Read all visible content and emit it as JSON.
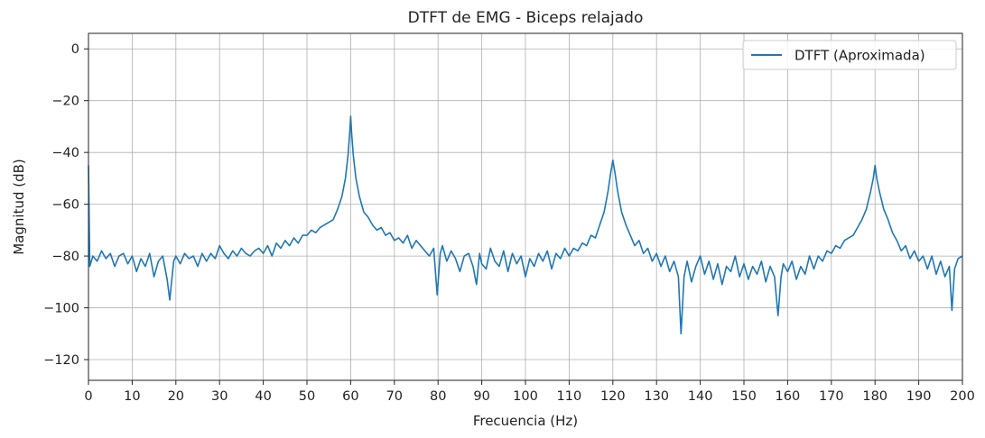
{
  "chart_data": {
    "type": "line",
    "title": "DTFT de EMG - Biceps relajado",
    "xlabel": "Frecuencia (Hz)",
    "ylabel": "Magnitud (dB)",
    "xlim": [
      0,
      200
    ],
    "ylim": [
      -128,
      6
    ],
    "xticks": [
      0,
      10,
      20,
      30,
      40,
      50,
      60,
      70,
      80,
      90,
      100,
      110,
      120,
      130,
      140,
      150,
      160,
      170,
      180,
      190,
      200
    ],
    "yticks": [
      0,
      -20,
      -40,
      -60,
      -80,
      -100,
      -120
    ],
    "grid": true,
    "legend_position": "top-right",
    "series": [
      {
        "name": "DTFT (Aproximada)",
        "color": "#1f77b4",
        "points": [
          [
            0,
            -45
          ],
          [
            0.3,
            -84
          ],
          [
            1,
            -80
          ],
          [
            2,
            -82
          ],
          [
            3,
            -78
          ],
          [
            4,
            -81
          ],
          [
            5,
            -79
          ],
          [
            6,
            -84
          ],
          [
            7,
            -80
          ],
          [
            8,
            -79
          ],
          [
            9,
            -83
          ],
          [
            10,
            -80
          ],
          [
            11,
            -86
          ],
          [
            12,
            -81
          ],
          [
            13,
            -84
          ],
          [
            14,
            -79
          ],
          [
            15,
            -88
          ],
          [
            16,
            -82
          ],
          [
            17,
            -80
          ],
          [
            18,
            -89
          ],
          [
            18.6,
            -97
          ],
          [
            19.5,
            -82
          ],
          [
            20,
            -80
          ],
          [
            21,
            -83
          ],
          [
            22,
            -79
          ],
          [
            23,
            -81
          ],
          [
            24,
            -80
          ],
          [
            25,
            -84
          ],
          [
            26,
            -79
          ],
          [
            27,
            -82
          ],
          [
            28,
            -79
          ],
          [
            29,
            -81
          ],
          [
            30,
            -76
          ],
          [
            31,
            -79
          ],
          [
            32,
            -81
          ],
          [
            33,
            -78
          ],
          [
            34,
            -80
          ],
          [
            35,
            -77
          ],
          [
            36,
            -79
          ],
          [
            37,
            -80
          ],
          [
            38,
            -78
          ],
          [
            39,
            -77
          ],
          [
            40,
            -79
          ],
          [
            41,
            -76
          ],
          [
            42,
            -80
          ],
          [
            43,
            -75
          ],
          [
            44,
            -77
          ],
          [
            45,
            -74
          ],
          [
            46,
            -76
          ],
          [
            47,
            -73
          ],
          [
            48,
            -75
          ],
          [
            49,
            -72
          ],
          [
            50,
            -72
          ],
          [
            51,
            -70
          ],
          [
            52,
            -71
          ],
          [
            53,
            -69
          ],
          [
            54,
            -68
          ],
          [
            55,
            -67
          ],
          [
            56,
            -66
          ],
          [
            57,
            -62
          ],
          [
            58,
            -57
          ],
          [
            58.8,
            -50
          ],
          [
            59.4,
            -41
          ],
          [
            59.8,
            -32
          ],
          [
            60,
            -26
          ],
          [
            60.2,
            -32
          ],
          [
            60.6,
            -41
          ],
          [
            61.2,
            -50
          ],
          [
            62,
            -57
          ],
          [
            63,
            -63
          ],
          [
            64,
            -65
          ],
          [
            65,
            -68
          ],
          [
            66,
            -70
          ],
          [
            67,
            -69
          ],
          [
            68,
            -72
          ],
          [
            69,
            -71
          ],
          [
            70,
            -74
          ],
          [
            71,
            -73
          ],
          [
            72,
            -75
          ],
          [
            73,
            -72
          ],
          [
            74,
            -77
          ],
          [
            75,
            -74
          ],
          [
            76,
            -76
          ],
          [
            77,
            -78
          ],
          [
            78,
            -80
          ],
          [
            79,
            -77
          ],
          [
            79.8,
            -95
          ],
          [
            80.5,
            -79
          ],
          [
            81,
            -76
          ],
          [
            82,
            -82
          ],
          [
            83,
            -78
          ],
          [
            84,
            -81
          ],
          [
            85,
            -86
          ],
          [
            86,
            -80
          ],
          [
            87,
            -79
          ],
          [
            88,
            -84
          ],
          [
            88.8,
            -91
          ],
          [
            89.5,
            -79
          ],
          [
            90,
            -83
          ],
          [
            91,
            -85
          ],
          [
            92,
            -77
          ],
          [
            93,
            -82
          ],
          [
            94,
            -84
          ],
          [
            95,
            -78
          ],
          [
            96,
            -86
          ],
          [
            97,
            -79
          ],
          [
            98,
            -83
          ],
          [
            99,
            -80
          ],
          [
            100,
            -88
          ],
          [
            101,
            -81
          ],
          [
            102,
            -84
          ],
          [
            103,
            -79
          ],
          [
            104,
            -82
          ],
          [
            105,
            -78
          ],
          [
            106,
            -85
          ],
          [
            107,
            -79
          ],
          [
            108,
            -81
          ],
          [
            109,
            -77
          ],
          [
            110,
            -80
          ],
          [
            111,
            -77
          ],
          [
            112,
            -78
          ],
          [
            113,
            -75
          ],
          [
            114,
            -76
          ],
          [
            115,
            -72
          ],
          [
            116,
            -73
          ],
          [
            117,
            -68
          ],
          [
            118,
            -63
          ],
          [
            118.9,
            -55
          ],
          [
            119.5,
            -48
          ],
          [
            120,
            -43
          ],
          [
            120.5,
            -48
          ],
          [
            121.1,
            -55
          ],
          [
            122,
            -63
          ],
          [
            123,
            -68
          ],
          [
            124,
            -72
          ],
          [
            125,
            -76
          ],
          [
            126,
            -74
          ],
          [
            127,
            -79
          ],
          [
            128,
            -77
          ],
          [
            129,
            -82
          ],
          [
            130,
            -79
          ],
          [
            131,
            -84
          ],
          [
            132,
            -80
          ],
          [
            133,
            -86
          ],
          [
            134,
            -82
          ],
          [
            135,
            -88
          ],
          [
            135.6,
            -110
          ],
          [
            136.3,
            -88
          ],
          [
            137,
            -82
          ],
          [
            138,
            -90
          ],
          [
            139,
            -84
          ],
          [
            140,
            -80
          ],
          [
            141,
            -87
          ],
          [
            142,
            -82
          ],
          [
            143,
            -89
          ],
          [
            144,
            -83
          ],
          [
            145,
            -91
          ],
          [
            146,
            -84
          ],
          [
            147,
            -86
          ],
          [
            148,
            -80
          ],
          [
            149,
            -88
          ],
          [
            150,
            -83
          ],
          [
            151,
            -89
          ],
          [
            152,
            -84
          ],
          [
            153,
            -87
          ],
          [
            154,
            -82
          ],
          [
            155,
            -90
          ],
          [
            156,
            -84
          ],
          [
            157,
            -88
          ],
          [
            157.8,
            -103
          ],
          [
            158.5,
            -88
          ],
          [
            159,
            -83
          ],
          [
            160,
            -86
          ],
          [
            161,
            -82
          ],
          [
            162,
            -89
          ],
          [
            163,
            -84
          ],
          [
            164,
            -87
          ],
          [
            165,
            -80
          ],
          [
            166,
            -85
          ],
          [
            167,
            -80
          ],
          [
            168,
            -82
          ],
          [
            169,
            -78
          ],
          [
            170,
            -79
          ],
          [
            171,
            -76
          ],
          [
            172,
            -77
          ],
          [
            173,
            -74
          ],
          [
            174,
            -73
          ],
          [
            175,
            -72
          ],
          [
            176,
            -69
          ],
          [
            177,
            -66
          ],
          [
            178,
            -62
          ],
          [
            179,
            -55
          ],
          [
            179.6,
            -50
          ],
          [
            180,
            -45
          ],
          [
            180.4,
            -50
          ],
          [
            181,
            -55
          ],
          [
            182,
            -62
          ],
          [
            183,
            -66
          ],
          [
            184,
            -71
          ],
          [
            185,
            -74
          ],
          [
            186,
            -78
          ],
          [
            187,
            -76
          ],
          [
            188,
            -81
          ],
          [
            189,
            -78
          ],
          [
            190,
            -82
          ],
          [
            191,
            -80
          ],
          [
            192,
            -85
          ],
          [
            193,
            -80
          ],
          [
            194,
            -87
          ],
          [
            195,
            -82
          ],
          [
            196,
            -88
          ],
          [
            197,
            -84
          ],
          [
            197.6,
            -101
          ],
          [
            198.2,
            -85
          ],
          [
            199,
            -81
          ],
          [
            200,
            -80
          ]
        ]
      }
    ]
  }
}
